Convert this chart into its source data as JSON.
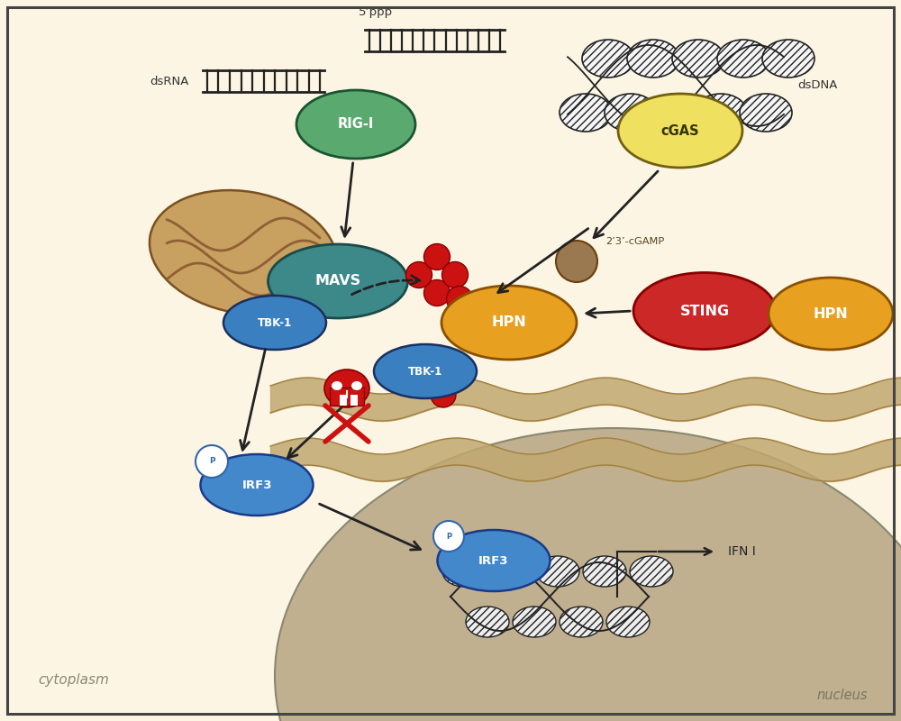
{
  "bg_color": "#fdf5e4",
  "border_color": "#444444",
  "colors": {
    "rig_i": "#5aaa70",
    "cgas": "#f0e060",
    "mavs": "#3d8888",
    "tbk1": "#3a80c0",
    "hpn": "#e8a020",
    "sting": "#cc2828",
    "irf3": "#4488cc",
    "mito_outer": "#c8a060",
    "mito_inner": "#8a5830",
    "red_dots": "#cc1111",
    "cgamp_brown": "#9a7850",
    "nucleus_bg": "#c0b090",
    "membrane_fill": "#c0a870",
    "membrane_line": "#a08040",
    "skull_red": "#cc1111",
    "arrow": "#222222",
    "dna_line": "#222222"
  },
  "labels": {
    "dsrna": "dsRNA",
    "five_ppp": "5’ppp",
    "dsdna": "dsDNA",
    "rig_i": "RIG-I",
    "cgas": "cGAS",
    "mavs": "MAVS",
    "tbk1": "TBK-1",
    "hpn": "HPN",
    "sting": "STING",
    "irf3": "IRF3",
    "p": "P",
    "cgamp": "2’3’-cGAMP",
    "ifn": "IFN I",
    "cytoplasm": "cytoplasm",
    "nucleus": "nucleus"
  },
  "figsize": [
    10,
    8
  ],
  "dpi": 100
}
